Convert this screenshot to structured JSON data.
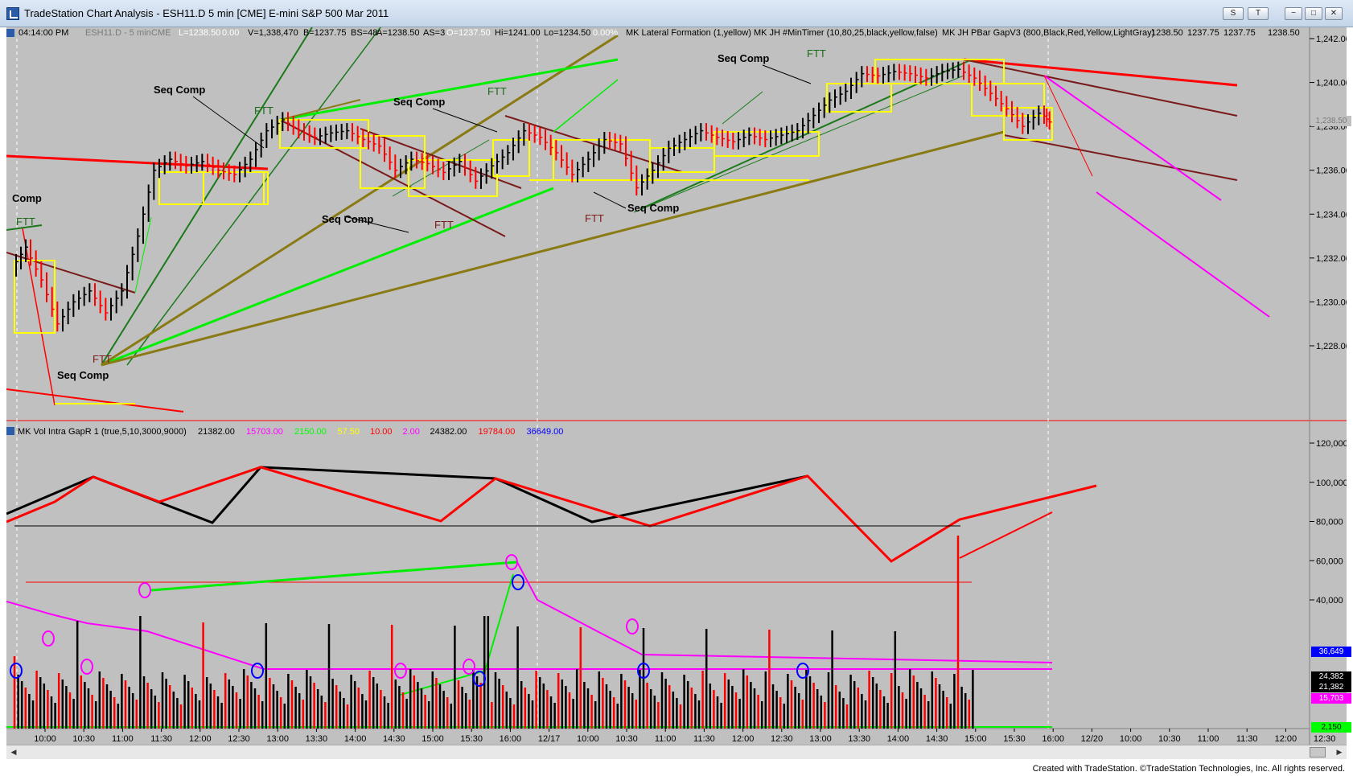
{
  "window": {
    "title": "TradeStation Chart Analysis - ESH11.D 5 min [CME] E-mini S&P 500 Mar 2011",
    "controls": [
      "S",
      "T",
      "−",
      "□",
      "✕"
    ]
  },
  "status_bar": {
    "time": "04:14:00 PM",
    "symbol": "ESH11.D - 5 min",
    "exchange": "CME",
    "last": "L=1238.50",
    "change": "0.00",
    "volume": "V=1,338,470",
    "bid": "B=1237.75",
    "bid_size": "BS=48",
    "ask": "A=1238.50",
    "ask_size": "AS=3",
    "open": "O=1237.50",
    "high": "Hi=1241.00",
    "low": "Lo=1234.50",
    "pct": "0.00%",
    "indicators": [
      "MK Lateral Formation (1,yellow)",
      "MK JH #MinTimer (10,80,25,black,yellow,false)",
      "MK JH PBar GapV3 (800,Black,Red,Yellow,LightGray)"
    ],
    "ohlc_values": [
      "1238.50",
      "1237.75",
      "1237.75",
      "1238.50"
    ]
  },
  "lower_pane": {
    "label": "MK Vol Intra GapR 1 (true,5,10,3000,9000)",
    "values": [
      {
        "text": "21382.00",
        "color": "#000000"
      },
      {
        "text": "15703.00",
        "color": "#ff00ff"
      },
      {
        "text": "2150.00",
        "color": "#00ff00"
      },
      {
        "text": "57.50",
        "color": "#ffff00"
      },
      {
        "text": "10.00",
        "color": "#ff0000"
      },
      {
        "text": "2.00",
        "color": "#ff00ff"
      },
      {
        "text": "24382.00",
        "color": "#000000"
      },
      {
        "text": "19784.00",
        "color": "#ff0000"
      },
      {
        "text": "36649.00",
        "color": "#0000ff"
      }
    ]
  },
  "price_axis": [
    "1,242.00",
    "1,240.00",
    "1,238.00",
    "1,236.00",
    "1,234.00",
    "1,232.00",
    "1,230.00",
    "1,228.00"
  ],
  "price_marker": "1,238.50",
  "volume_axis": [
    "120,000",
    "100,000",
    "80,000",
    "60,000",
    "40,000"
  ],
  "volume_markers": [
    {
      "text": "36,649",
      "bg": "#0000ff",
      "fg": "#ffffff"
    },
    {
      "text": "24,382",
      "bg": "#000000",
      "fg": "#ffffff"
    },
    {
      "text": "21,382",
      "bg": "#000000",
      "fg": "#ffffff"
    },
    {
      "text": "15,703",
      "bg": "#ff00ff",
      "fg": "#ffffff"
    },
    {
      "text": "2,150",
      "bg": "#00ff00",
      "fg": "#000000"
    }
  ],
  "time_axis": [
    "10:00",
    "10:30",
    "11:00",
    "11:30",
    "12:00",
    "12:30",
    "13:00",
    "13:30",
    "14:00",
    "14:30",
    "15:00",
    "15:30",
    "16:00",
    "12/17",
    "10:00",
    "10:30",
    "11:00",
    "11:30",
    "12:00",
    "12:30",
    "13:00",
    "13:30",
    "14:00",
    "14:30",
    "15:00",
    "15:30",
    "16:00",
    "12/20",
    "10:00",
    "10:30",
    "11:00",
    "11:30",
    "12:00",
    "12:30"
  ],
  "annotations": {
    "seq_comp": "Seq Comp",
    "comp": "Comp",
    "ftt": "FTT"
  },
  "footer": {
    "copyright": "Created with TradeStation. ©TradeStation Technologies, Inc. All rights reserved."
  },
  "colors": {
    "background": "#c0c0c0",
    "up_bar": "#000000",
    "down_bar": "#ff0000",
    "lateral": "#ffff00",
    "trend_up": "#00dd00",
    "trend_dark": "#1a7a1a",
    "olive": "#8a7a14",
    "magenta": "#ff00ff",
    "maroon": "#7a1a1a"
  }
}
